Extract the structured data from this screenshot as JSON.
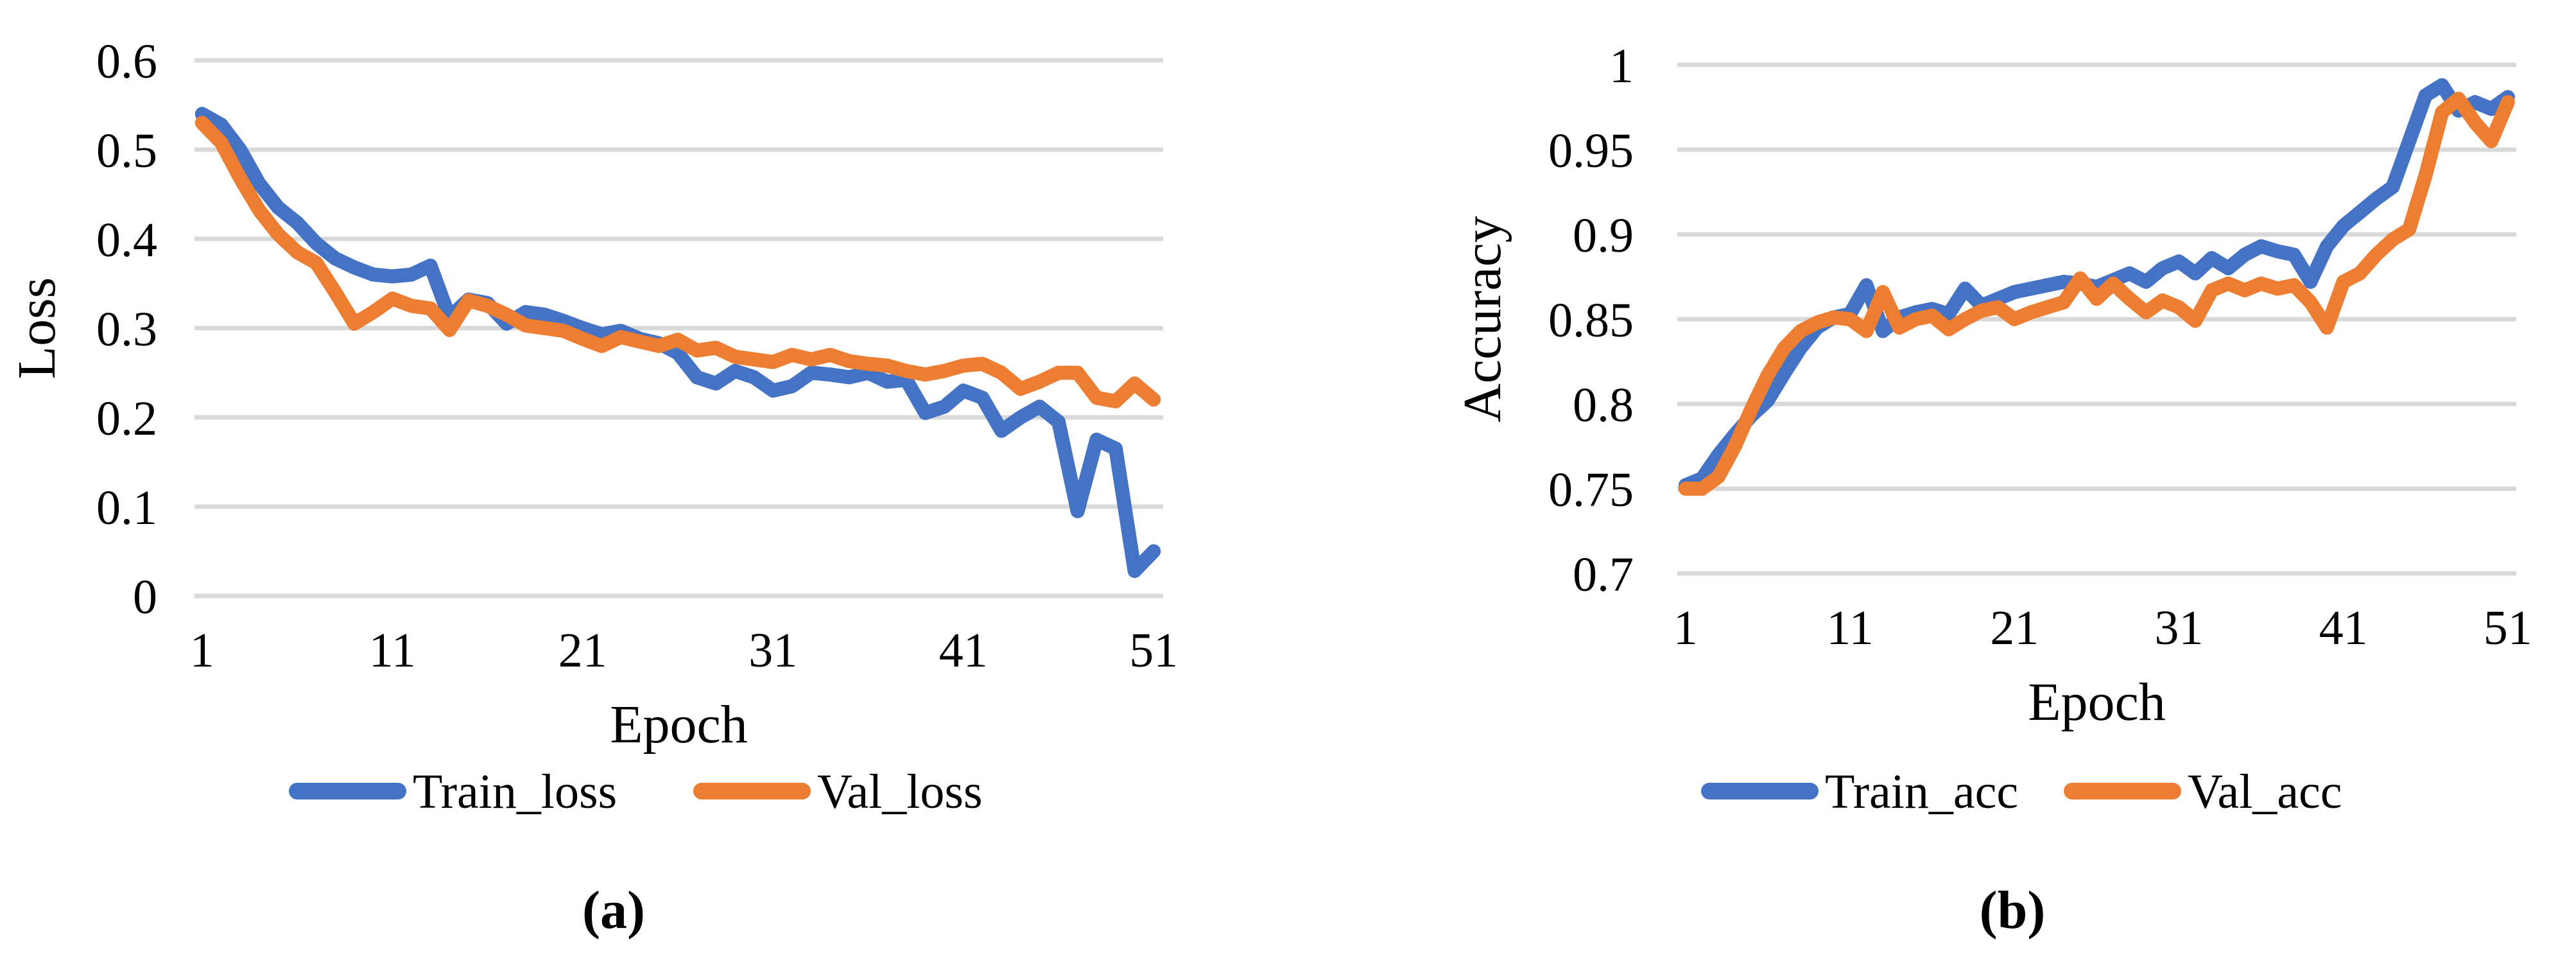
{
  "figure": {
    "background": "#ffffff",
    "panel_a_label": "(a)",
    "panel_b_label": "(b)"
  },
  "colors": {
    "train_series": "#4472C4",
    "val_series": "#ED7D31",
    "gridline": "#D9D9D9",
    "text": "#000000"
  },
  "chart_data": [
    {
      "id": "loss",
      "type": "line",
      "title": "",
      "xlabel": "Epoch",
      "ylabel": "Loss",
      "panel_label": "(a)",
      "grid": true,
      "legend_position": "bottom",
      "xlim": [
        1,
        51
      ],
      "ylim": [
        0,
        0.6
      ],
      "xticks": [
        1,
        11,
        21,
        31,
        41,
        51
      ],
      "yticks": [
        0,
        0.1,
        0.2,
        0.3,
        0.4,
        0.5,
        0.6
      ],
      "ytick_labels": [
        "0",
        "0.1",
        "0.2",
        "0.3",
        "0.4",
        "0.5",
        "0.6"
      ],
      "epochs": [
        1,
        2,
        3,
        4,
        5,
        6,
        7,
        8,
        9,
        10,
        11,
        12,
        13,
        14,
        15,
        16,
        17,
        18,
        19,
        20,
        21,
        22,
        23,
        24,
        25,
        26,
        27,
        28,
        29,
        30,
        31,
        32,
        33,
        34,
        35,
        36,
        37,
        38,
        39,
        40,
        41,
        42,
        43,
        44,
        45,
        46,
        47,
        48,
        49,
        50,
        51
      ],
      "series": [
        {
          "name": "Train_loss",
          "color_key": "train_series",
          "values": [
            0.54,
            0.528,
            0.5,
            0.462,
            0.435,
            0.418,
            0.395,
            0.378,
            0.368,
            0.36,
            0.358,
            0.36,
            0.37,
            0.312,
            0.332,
            0.328,
            0.305,
            0.318,
            0.315,
            0.308,
            0.3,
            0.293,
            0.297,
            0.288,
            0.283,
            0.272,
            0.245,
            0.238,
            0.252,
            0.245,
            0.23,
            0.235,
            0.25,
            0.248,
            0.245,
            0.25,
            0.24,
            0.242,
            0.205,
            0.212,
            0.23,
            0.222,
            0.185,
            0.2,
            0.212,
            0.195,
            0.095,
            0.175,
            0.165,
            0.028,
            0.05
          ]
        },
        {
          "name": "Val_loss",
          "color_key": "val_series",
          "values": [
            0.53,
            0.508,
            0.468,
            0.432,
            0.405,
            0.385,
            0.373,
            0.34,
            0.305,
            0.318,
            0.333,
            0.325,
            0.322,
            0.298,
            0.331,
            0.325,
            0.315,
            0.303,
            0.3,
            0.297,
            0.288,
            0.28,
            0.29,
            0.285,
            0.28,
            0.287,
            0.275,
            0.278,
            0.268,
            0.265,
            0.262,
            0.27,
            0.265,
            0.27,
            0.263,
            0.26,
            0.258,
            0.252,
            0.248,
            0.252,
            0.258,
            0.26,
            0.25,
            0.232,
            0.24,
            0.25,
            0.25,
            0.222,
            0.218,
            0.238,
            0.22
          ]
        }
      ]
    },
    {
      "id": "accuracy",
      "type": "line",
      "title": "",
      "xlabel": "Epoch",
      "ylabel": "Accuracy",
      "panel_label": "(b)",
      "grid": true,
      "legend_position": "bottom",
      "xlim": [
        1,
        51
      ],
      "ylim": [
        0.7,
        1.0
      ],
      "xticks": [
        1,
        11,
        21,
        31,
        41,
        51
      ],
      "yticks": [
        0.7,
        0.75,
        0.8,
        0.85,
        0.9,
        0.95,
        1.0
      ],
      "ytick_labels": [
        "0.7",
        "0.75",
        "0.8",
        "0.85",
        "0.9",
        "0.95",
        "1"
      ],
      "epochs": [
        1,
        2,
        3,
        4,
        5,
        6,
        7,
        8,
        9,
        10,
        11,
        12,
        13,
        14,
        15,
        16,
        17,
        18,
        19,
        20,
        21,
        22,
        23,
        24,
        25,
        26,
        27,
        28,
        29,
        30,
        31,
        32,
        33,
        34,
        35,
        36,
        37,
        38,
        39,
        40,
        41,
        42,
        43,
        44,
        45,
        46,
        47,
        48,
        49,
        50,
        51
      ],
      "series": [
        {
          "name": "Train_acc",
          "color_key": "train_series",
          "values": [
            0.752,
            0.756,
            0.77,
            0.782,
            0.793,
            0.802,
            0.818,
            0.833,
            0.845,
            0.851,
            0.853,
            0.87,
            0.843,
            0.851,
            0.854,
            0.856,
            0.853,
            0.868,
            0.858,
            0.862,
            0.866,
            0.868,
            0.87,
            0.872,
            0.871,
            0.869,
            0.873,
            0.877,
            0.872,
            0.88,
            0.884,
            0.877,
            0.886,
            0.88,
            0.888,
            0.893,
            0.89,
            0.888,
            0.872,
            0.893,
            0.905,
            0.913,
            0.921,
            0.928,
            0.955,
            0.982,
            0.988,
            0.973,
            0.978,
            0.974,
            0.981
          ]
        },
        {
          "name": "Val_acc",
          "color_key": "val_series",
          "values": [
            0.75,
            0.75,
            0.757,
            0.775,
            0.797,
            0.817,
            0.833,
            0.843,
            0.848,
            0.851,
            0.85,
            0.843,
            0.866,
            0.845,
            0.85,
            0.852,
            0.844,
            0.85,
            0.855,
            0.857,
            0.85,
            0.854,
            0.857,
            0.86,
            0.874,
            0.862,
            0.871,
            0.862,
            0.854,
            0.861,
            0.857,
            0.849,
            0.867,
            0.871,
            0.867,
            0.871,
            0.868,
            0.87,
            0.86,
            0.845,
            0.872,
            0.877,
            0.888,
            0.897,
            0.903,
            0.935,
            0.972,
            0.98,
            0.966,
            0.955,
            0.978
          ]
        }
      ]
    }
  ]
}
